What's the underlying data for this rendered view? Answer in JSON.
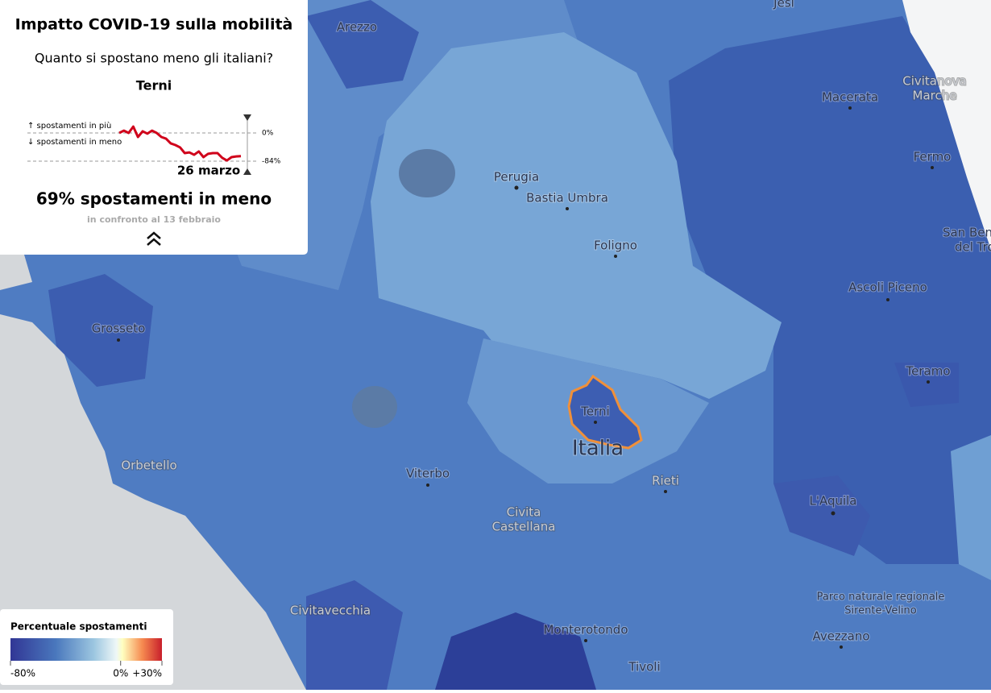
{
  "panel": {
    "title": "Impatto COVID-19 sulla mobilità",
    "subtitle": "Quanto si spostano meno gli italiani?",
    "place": "Terni",
    "sparkline": {
      "up_label": "↑ spostamenti in più",
      "down_label": "↓ spostamenti in meno",
      "values": [
        0,
        7,
        0,
        19,
        -12,
        5,
        -2,
        7,
        0,
        -12,
        -17,
        -31,
        -36,
        -43,
        -60,
        -58,
        -65,
        -55,
        -72,
        -62,
        -60,
        -60,
        -74,
        -82,
        -72,
        -70,
        -69
      ],
      "yticks": [
        {
          "value": 0,
          "label": "0%"
        },
        {
          "value": -84,
          "label": "-84%"
        }
      ],
      "date": "26 marzo",
      "color": "#d0021b"
    },
    "stat": "69% spostamenti in meno",
    "comparison": "in confronto al 13 febbraio"
  },
  "legend": {
    "title": "Percentuale spostamenti",
    "ticks": [
      {
        "value": -80,
        "label": "-80%"
      },
      {
        "value": 0,
        "label": "0%"
      },
      {
        "value": 30,
        "label": "+30%"
      }
    ]
  },
  "map": {
    "labels": [
      "Arezzo",
      "Jesi",
      "Perugia",
      "Bastia Umbra",
      "Foligno",
      "Macerata",
      [
        "Civitanova",
        "Marche"
      ],
      "Fermo",
      [
        "San Benedetto",
        "del Tronto"
      ],
      "Ascoli Piceno",
      "Grosseto",
      "Teramo",
      "Terni",
      "Italia",
      "Orbetello",
      "Viterbo",
      "Rieti",
      [
        "Civita",
        "Castellana"
      ],
      "L'Aquila",
      "Civitavecchia",
      [
        "Parco naturale regionale",
        "Sirente-Velino"
      ],
      "Monterotondo",
      "Avezzano",
      "Tivoli"
    ]
  }
}
